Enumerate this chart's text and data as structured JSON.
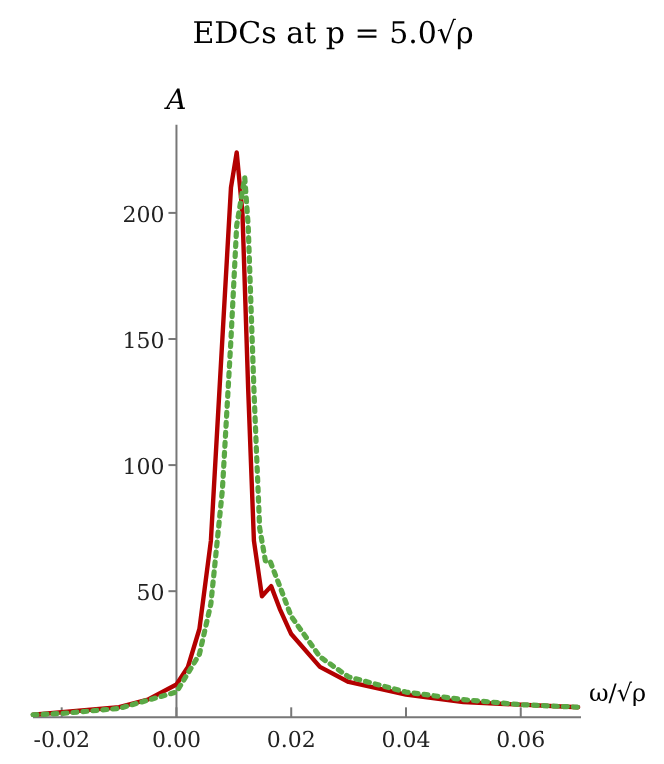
{
  "chart_data": {
    "type": "line",
    "title": "EDCs at p = 5.0√ρ",
    "xlabel": "ω/√ρ",
    "ylabel": "A",
    "xlim": [
      -0.025,
      0.0705
    ],
    "ylim": [
      0,
      235
    ],
    "xticks": [
      {
        "value": -0.02,
        "label": "-0.02"
      },
      {
        "value": 0,
        "label": "0.00"
      },
      {
        "value": 0.02,
        "label": "0.02"
      },
      {
        "value": 0.04,
        "label": "0.04"
      },
      {
        "value": 0.06,
        "label": "0.06"
      }
    ],
    "yticks": [
      50,
      100,
      150,
      200
    ],
    "grid": false,
    "series": [
      {
        "color": "#b30000",
        "line_style": "solid",
        "x": [
          -0.025,
          -0.02,
          -0.01,
          -0.005,
          0,
          0.002,
          0.004,
          0.006,
          0.008,
          0.0095,
          0.0105,
          0.0115,
          0.0125,
          0.0135,
          0.0149,
          0.0165,
          0.018,
          0.02,
          0.025,
          0.03,
          0.04,
          0.05,
          0.06,
          0.07
        ],
        "values": [
          1,
          2,
          4,
          7,
          13,
          20,
          35,
          70,
          150,
          210,
          224,
          200,
          130,
          70,
          48,
          52,
          43,
          33,
          20,
          14,
          9,
          6,
          5,
          4
        ]
      },
      {
        "color": "#5aa845",
        "line_style": "dotted",
        "x": [
          -0.025,
          -0.02,
          -0.01,
          0,
          0.004,
          0.006,
          0.008,
          0.0095,
          0.0105,
          0.0119,
          0.0125,
          0.0135,
          0.0145,
          0.0155,
          0.0163,
          0.018,
          0.02,
          0.025,
          0.03,
          0.04,
          0.05,
          0.06,
          0.07
        ],
        "values": [
          1,
          1.5,
          3.5,
          10,
          25,
          45,
          90,
          150,
          195,
          214,
          195,
          130,
          75,
          62,
          62,
          52,
          40,
          24,
          16,
          10,
          7,
          5,
          4
        ]
      }
    ]
  }
}
